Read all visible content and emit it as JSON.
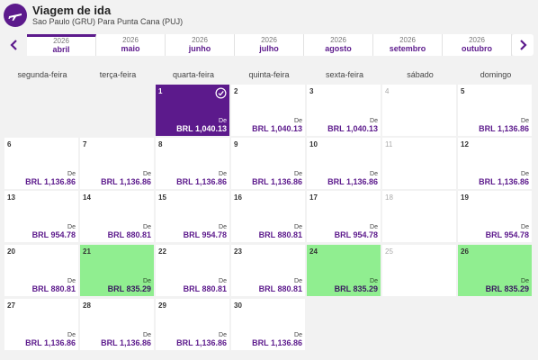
{
  "header": {
    "title": "Viagem de ida",
    "subtitle": "Sao Paulo (GRU) Para Punta Cana (PUJ)"
  },
  "months": [
    {
      "year": "2026",
      "month": "abril",
      "active": true
    },
    {
      "year": "2026",
      "month": "maio",
      "active": false
    },
    {
      "year": "2026",
      "month": "junho",
      "active": false
    },
    {
      "year": "2026",
      "month": "julho",
      "active": false
    },
    {
      "year": "2026",
      "month": "agosto",
      "active": false
    },
    {
      "year": "2026",
      "month": "setembro",
      "active": false
    },
    {
      "year": "2026",
      "month": "outubro",
      "active": false
    }
  ],
  "weekdays": [
    "segunda-feira",
    "terça-feira",
    "quarta-feira",
    "quinta-feira",
    "sexta-feira",
    "sábado",
    "domingo"
  ],
  "price_prefix": "De",
  "days": [
    {
      "day": "1",
      "price": "BRL 1,040.13",
      "state": "selected"
    },
    {
      "day": "2",
      "price": "BRL 1,040.13",
      "state": "normal"
    },
    {
      "day": "3",
      "price": "BRL 1,040.13",
      "state": "normal"
    },
    {
      "day": "4",
      "price": "",
      "state": "disabled"
    },
    {
      "day": "5",
      "price": "BRL 1,136.86",
      "state": "normal"
    },
    {
      "day": "6",
      "price": "BRL 1,136.86",
      "state": "normal"
    },
    {
      "day": "7",
      "price": "BRL 1,136.86",
      "state": "normal"
    },
    {
      "day": "8",
      "price": "BRL 1,136.86",
      "state": "normal"
    },
    {
      "day": "9",
      "price": "BRL 1,136.86",
      "state": "normal"
    },
    {
      "day": "10",
      "price": "BRL 1,136.86",
      "state": "normal"
    },
    {
      "day": "11",
      "price": "",
      "state": "disabled"
    },
    {
      "day": "12",
      "price": "BRL 1,136.86",
      "state": "normal"
    },
    {
      "day": "13",
      "price": "BRL 954.78",
      "state": "normal"
    },
    {
      "day": "14",
      "price": "BRL 880.81",
      "state": "normal"
    },
    {
      "day": "15",
      "price": "BRL 954.78",
      "state": "normal"
    },
    {
      "day": "16",
      "price": "BRL 880.81",
      "state": "normal"
    },
    {
      "day": "17",
      "price": "BRL 954.78",
      "state": "normal"
    },
    {
      "day": "18",
      "price": "",
      "state": "disabled"
    },
    {
      "day": "19",
      "price": "BRL 954.78",
      "state": "normal"
    },
    {
      "day": "20",
      "price": "BRL 880.81",
      "state": "normal"
    },
    {
      "day": "21",
      "price": "BRL 835.29",
      "state": "cheap"
    },
    {
      "day": "22",
      "price": "BRL 880.81",
      "state": "normal"
    },
    {
      "day": "23",
      "price": "BRL 880.81",
      "state": "normal"
    },
    {
      "day": "24",
      "price": "BRL 835.29",
      "state": "cheap"
    },
    {
      "day": "25",
      "price": "",
      "state": "disabled"
    },
    {
      "day": "26",
      "price": "BRL 835.29",
      "state": "cheap"
    },
    {
      "day": "27",
      "price": "BRL 1,136.86",
      "state": "normal"
    },
    {
      "day": "28",
      "price": "BRL 1,136.86",
      "state": "normal"
    },
    {
      "day": "29",
      "price": "BRL 1,136.86",
      "state": "normal"
    },
    {
      "day": "30",
      "price": "BRL 1,136.86",
      "state": "normal"
    }
  ],
  "colors": {
    "brand_purple": "#5c1a8c",
    "cheapest_green": "#90ee90"
  },
  "icons": {
    "header": "plane-icon",
    "prev": "chevron-left-icon",
    "next": "chevron-right-icon",
    "selected": "check-circle-icon"
  }
}
